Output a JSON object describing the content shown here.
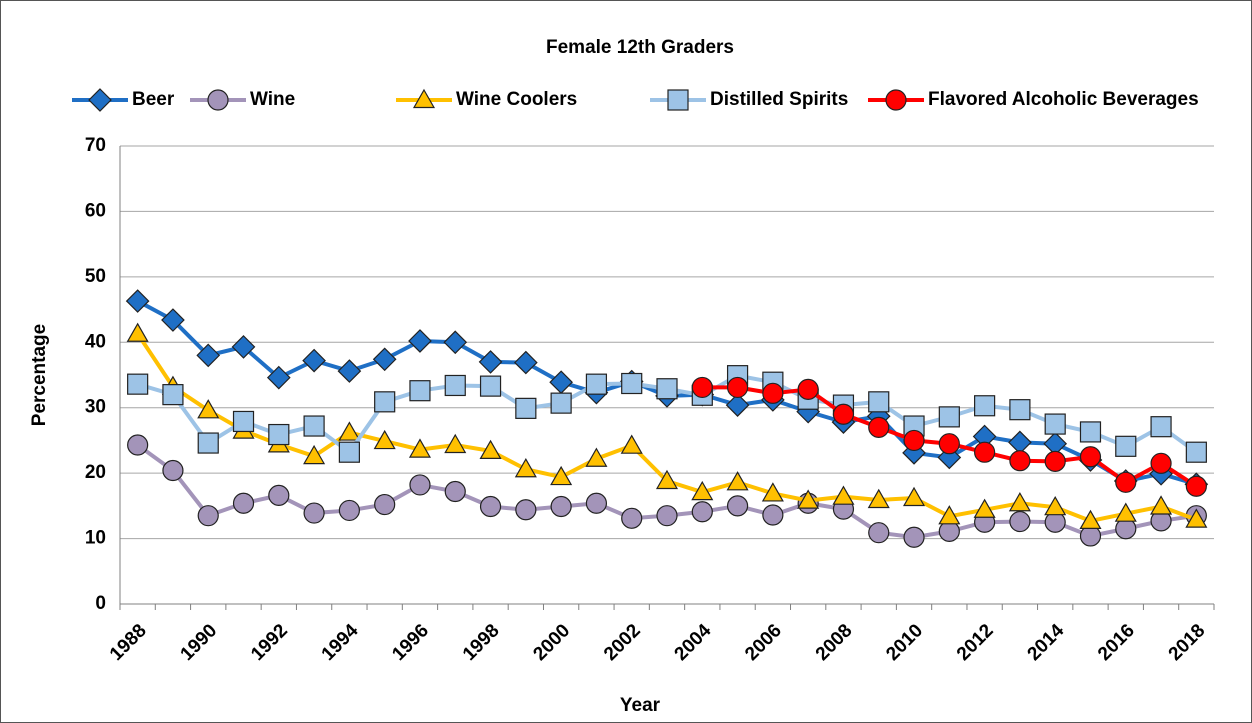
{
  "chart_data": {
    "type": "line",
    "title": "Female 12th Graders",
    "x_label": "Year",
    "y_label": "Percentage",
    "categories": [
      "1988",
      null,
      "1990",
      null,
      "1992",
      null,
      "1994",
      null,
      "1996",
      null,
      "1998",
      null,
      "2000",
      null,
      "2002",
      null,
      "2004",
      null,
      "2006",
      null,
      "2008",
      null,
      "2010",
      null,
      "2012",
      null,
      "2014",
      null,
      "2016",
      null,
      "2018"
    ],
    "ylim": [
      0,
      70
    ],
    "yticks": [
      0,
      10,
      20,
      30,
      40,
      50,
      60,
      70
    ],
    "grid": true,
    "legend": "top",
    "series": [
      {
        "name": "Beer",
        "color": "#1f6fc5",
        "marker": "diamond",
        "values": [
          46.3,
          43.4,
          38.0,
          39.3,
          34.6,
          37.2,
          35.6,
          37.4,
          40.2,
          40.0,
          37.0,
          36.9,
          33.9,
          32.3,
          34.0,
          31.8,
          32.0,
          30.4,
          31.2,
          29.4,
          27.8,
          28.7,
          23.1,
          22.4,
          25.6,
          24.7,
          24.5,
          22.0,
          18.8,
          19.9,
          18.3
        ]
      },
      {
        "name": "Wine",
        "color": "#a394b9",
        "marker": "circle",
        "values": [
          24.3,
          20.4,
          13.5,
          15.4,
          16.6,
          13.9,
          14.3,
          15.2,
          18.2,
          17.2,
          14.9,
          14.4,
          14.9,
          15.4,
          13.1,
          13.5,
          14.1,
          15.0,
          13.6,
          15.4,
          14.5,
          10.9,
          10.2,
          11.1,
          12.5,
          12.6,
          12.5,
          10.4,
          11.5,
          12.7,
          13.5
        ]
      },
      {
        "name": "Wine Coolers",
        "color": "#ffc000",
        "marker": "triangle",
        "values": [
          41.3,
          33.2,
          29.6,
          26.5,
          24.4,
          22.6,
          26.2,
          24.9,
          23.6,
          24.3,
          23.4,
          20.6,
          19.4,
          22.2,
          24.2,
          18.8,
          17.1,
          18.6,
          16.9,
          15.8,
          16.4,
          15.9,
          16.2,
          13.4,
          14.4,
          15.4,
          14.8,
          12.7,
          13.8,
          14.9,
          12.9
        ]
      },
      {
        "name": "Distilled Spirits",
        "color": "#9dc3e6",
        "marker": "square",
        "values": [
          33.6,
          32.0,
          24.6,
          27.9,
          25.9,
          27.2,
          23.2,
          30.9,
          32.6,
          33.4,
          33.3,
          29.9,
          30.7,
          33.6,
          33.7,
          32.9,
          31.9,
          34.9,
          33.9,
          31.3,
          30.4,
          30.9,
          27.2,
          28.6,
          30.3,
          29.7,
          27.5,
          26.3,
          24.1,
          27.1,
          23.2
        ]
      },
      {
        "name": "Flavored Alcoholic Beverages",
        "color": "#ff0000",
        "marker": "circle",
        "values": [
          null,
          null,
          null,
          null,
          null,
          null,
          null,
          null,
          null,
          null,
          null,
          null,
          null,
          null,
          null,
          null,
          33.1,
          33.1,
          32.2,
          32.8,
          29.0,
          27.0,
          25.0,
          24.5,
          23.2,
          21.9,
          21.8,
          22.5,
          18.6,
          21.5,
          18.0
        ]
      }
    ]
  }
}
